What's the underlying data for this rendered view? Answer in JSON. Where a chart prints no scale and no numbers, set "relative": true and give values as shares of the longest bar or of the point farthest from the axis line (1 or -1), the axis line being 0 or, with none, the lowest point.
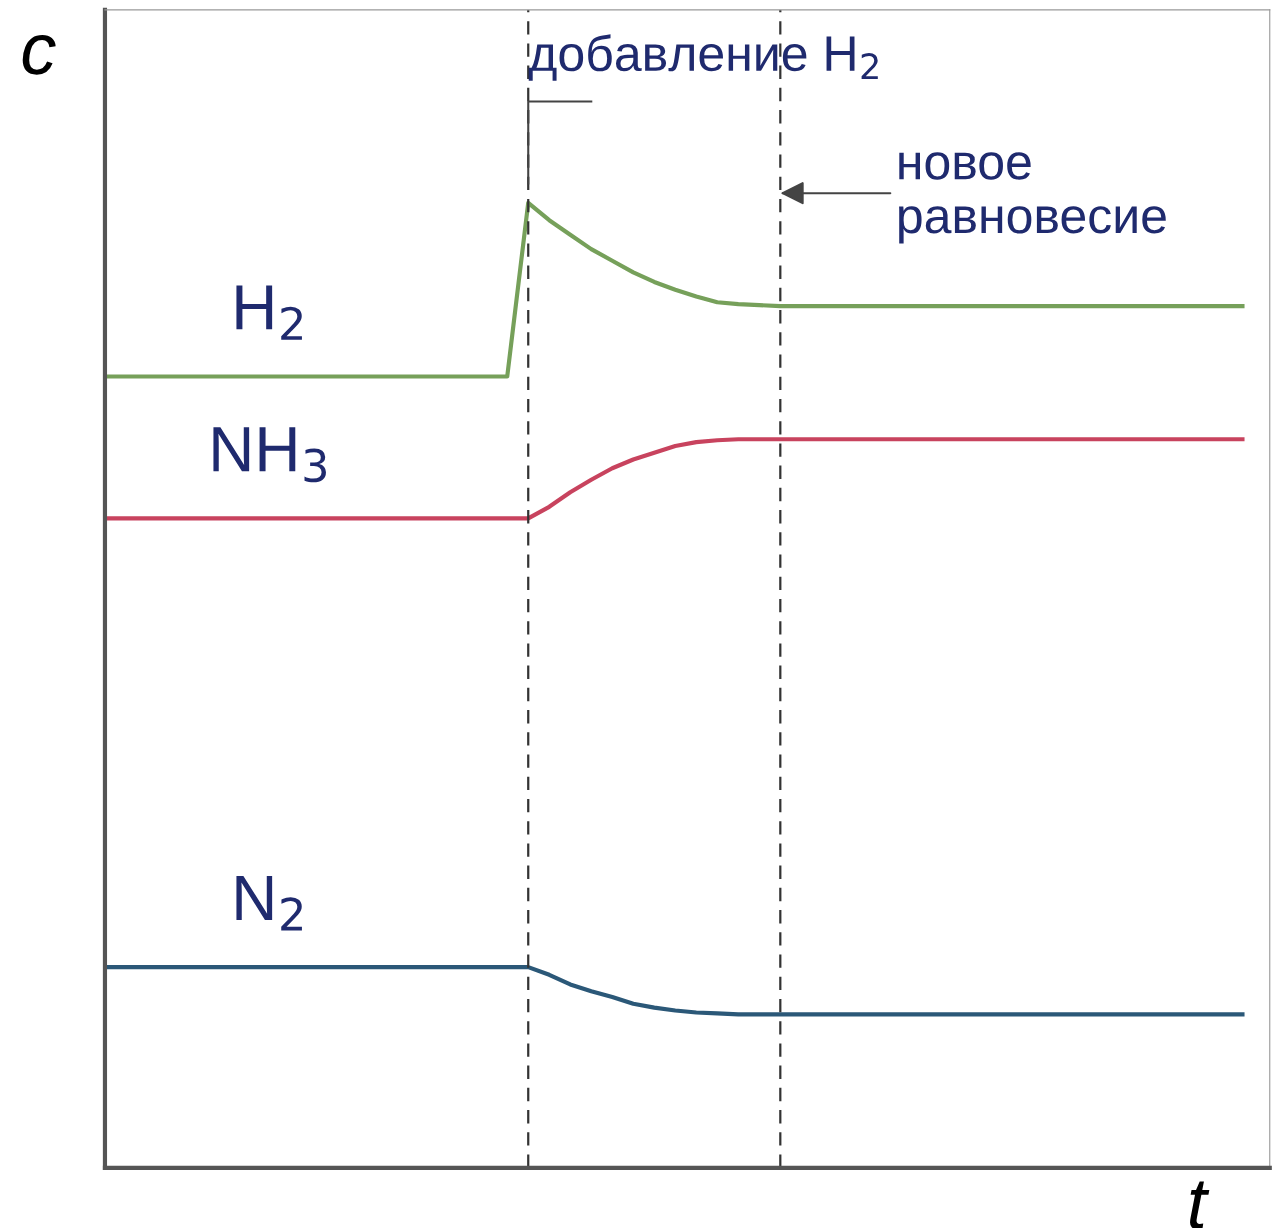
{
  "chart_data": {
    "type": "line",
    "relative": true,
    "xlabel": "t",
    "ylabel": "c",
    "legend": false,
    "grid": false,
    "marker": "none",
    "line_style": "solid",
    "categories": [
      null,
      null,
      null,
      null,
      null,
      null,
      null,
      null,
      null,
      null,
      null,
      null,
      null,
      null,
      null,
      null,
      null,
      null,
      null,
      null,
      null,
      null,
      null,
      null,
      null,
      null,
      null,
      null,
      null,
      null,
      null,
      null,
      null,
      null,
      null,
      null,
      null,
      null,
      null,
      null,
      null,
      null,
      null,
      null,
      null,
      null,
      null,
      null,
      null,
      null,
      null,
      null,
      null,
      null,
      null
    ],
    "series": [
      {
        "name": "H$_{2}$",
        "color": "#76a05a",
        "values": [
          0.82,
          0.82,
          0.82,
          0.82,
          0.82,
          0.82,
          0.82,
          0.82,
          0.82,
          0.82,
          0.82,
          0.82,
          0.82,
          0.82,
          0.82,
          0.82,
          0.82,
          0.82,
          0.82,
          0.82,
          1.0,
          0.982,
          0.967,
          0.952,
          0.94,
          0.928,
          0.918,
          0.91,
          0.903,
          0.897,
          0.895,
          0.894,
          0.893,
          0.893,
          0.893,
          0.893,
          0.893,
          0.893,
          0.893,
          0.893,
          0.893,
          0.893,
          0.893,
          0.893,
          0.893,
          0.893,
          0.893,
          0.893,
          0.893,
          0.893,
          0.893,
          0.893,
          0.893,
          0.893,
          0.893
        ]
      },
      {
        "name": "NH$_{3}$",
        "color": "#c8435e",
        "values": [
          0.673,
          0.673,
          0.673,
          0.673,
          0.673,
          0.673,
          0.673,
          0.673,
          0.673,
          0.673,
          0.673,
          0.673,
          0.673,
          0.673,
          0.673,
          0.673,
          0.673,
          0.673,
          0.673,
          0.673,
          0.673,
          0.685,
          0.7,
          0.713,
          0.725,
          0.734,
          0.741,
          0.748,
          0.752,
          0.754,
          0.755,
          0.755,
          0.755,
          0.755,
          0.755,
          0.755,
          0.755,
          0.755,
          0.755,
          0.755,
          0.755,
          0.755,
          0.755,
          0.755,
          0.755,
          0.755,
          0.755,
          0.755,
          0.755,
          0.755,
          0.755,
          0.755,
          0.755,
          0.755,
          0.755
        ]
      },
      {
        "name": "N$_{2}$",
        "color": "#2b5878",
        "values": [
          0.208,
          0.208,
          0.208,
          0.208,
          0.208,
          0.208,
          0.208,
          0.208,
          0.208,
          0.208,
          0.208,
          0.208,
          0.208,
          0.208,
          0.208,
          0.208,
          0.208,
          0.208,
          0.208,
          0.208,
          0.208,
          0.2,
          0.19,
          0.183,
          0.177,
          0.17,
          0.166,
          0.163,
          0.161,
          0.16,
          0.159,
          0.159,
          0.159,
          0.159,
          0.159,
          0.159,
          0.159,
          0.159,
          0.159,
          0.159,
          0.159,
          0.159,
          0.159,
          0.159,
          0.159,
          0.159,
          0.159,
          0.159,
          0.159,
          0.159,
          0.159,
          0.159,
          0.159,
          0.159,
          0.159
        ]
      }
    ],
    "annotations": [
      "добавление H$_{2}$",
      "новое\nравновесие"
    ]
  }
}
